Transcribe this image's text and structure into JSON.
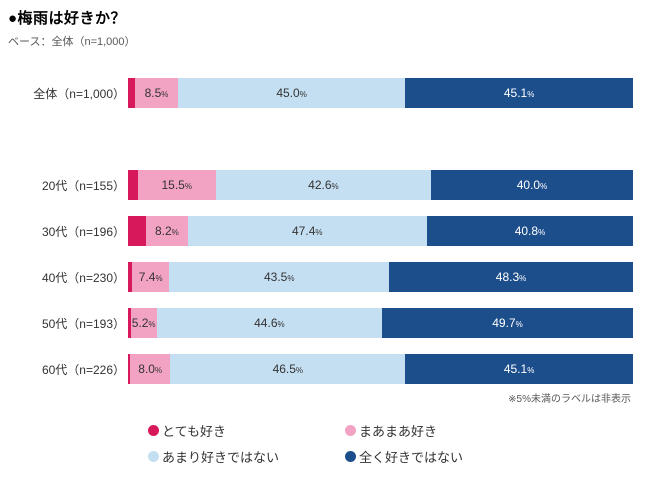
{
  "chart_data": {
    "type": "bar",
    "stacked": true,
    "orientation": "horizontal",
    "title": "●梅雨は好きか？",
    "base_note": "ベース：全体（n=1,000）",
    "footnote": "※5%未満のラベルは非表示",
    "label_threshold_percent": 5,
    "xlim": [
      0,
      100
    ],
    "series": [
      {
        "name": "とても好き",
        "color": "#d7185b",
        "label_color": "#ffffff"
      },
      {
        "name": "まあまあ好き",
        "color": "#f2a3c3",
        "label_color": "#333333"
      },
      {
        "name": "あまり好きではない",
        "color": "#c5dff2",
        "label_color": "#333333"
      },
      {
        "name": "全く好きではない",
        "color": "#1d4e8c",
        "label_color": "#ffffff"
      }
    ],
    "rows": [
      {
        "label": "全体（n=1,000）",
        "group": "total",
        "values": [
          1.4,
          8.5,
          45.0,
          45.1
        ]
      },
      {
        "label": "20代（n=155）",
        "group": "age",
        "values": [
          1.9,
          15.5,
          42.6,
          40.0
        ]
      },
      {
        "label": "30代（n=196）",
        "group": "age",
        "values": [
          3.6,
          8.2,
          47.4,
          40.8
        ]
      },
      {
        "label": "40代（n=230）",
        "group": "age",
        "values": [
          0.8,
          7.4,
          43.5,
          48.3
        ]
      },
      {
        "label": "50代（n=193）",
        "group": "age",
        "values": [
          0.5,
          5.2,
          44.6,
          49.7
        ]
      },
      {
        "label": "60代（n=226）",
        "group": "age",
        "values": [
          0.4,
          8.0,
          46.5,
          45.1
        ]
      }
    ]
  }
}
